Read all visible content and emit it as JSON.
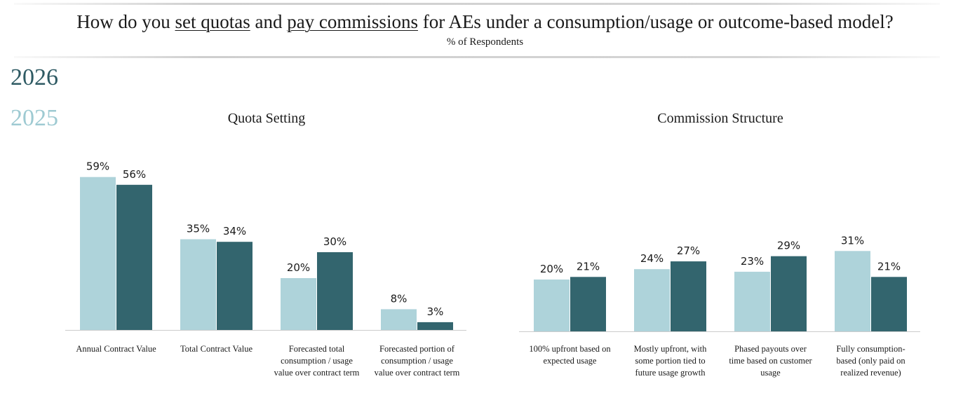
{
  "header": {
    "title_parts": [
      "How do you ",
      "set quotas",
      " and ",
      "pay commissions",
      " for AEs under a consumption/usage or outcome-based model?"
    ],
    "subtitle": "% of Respondents"
  },
  "legend": [
    {
      "label": "2026",
      "color": "#33656e"
    },
    {
      "label": "2025",
      "color": "#aed3da"
    }
  ],
  "chart_data": [
    {
      "type": "bar",
      "title": "Quota Setting",
      "categories": [
        [
          "Annual Contract Value"
        ],
        [
          "Total Contract Value"
        ],
        [
          "Forecasted total",
          "consumption / usage",
          "value over contract term"
        ],
        [
          "Forecasted portion of",
          "consumption / usage",
          "value over contract term"
        ]
      ],
      "series": [
        {
          "name": "2025",
          "values": [
            59,
            35,
            20,
            8
          ]
        },
        {
          "name": "2026",
          "values": [
            56,
            34,
            30,
            3
          ]
        }
      ],
      "value_suffix": "%",
      "ylim": [
        0,
        60
      ]
    },
    {
      "type": "bar",
      "title": "Commission Structure",
      "categories": [
        [
          "100% upfront based on",
          "expected usage"
        ],
        [
          "Mostly upfront, with",
          "some portion tied to",
          "future usage growth"
        ],
        [
          "Phased payouts over",
          "time based on customer",
          "usage"
        ],
        [
          "Fully consumption-",
          "based (only paid on",
          "realized revenue)"
        ]
      ],
      "series": [
        {
          "name": "2025",
          "values": [
            20,
            24,
            23,
            31
          ]
        },
        {
          "name": "2026",
          "values": [
            21,
            27,
            29,
            21
          ]
        }
      ],
      "value_suffix": "%",
      "ylim": [
        0,
        60
      ]
    }
  ]
}
